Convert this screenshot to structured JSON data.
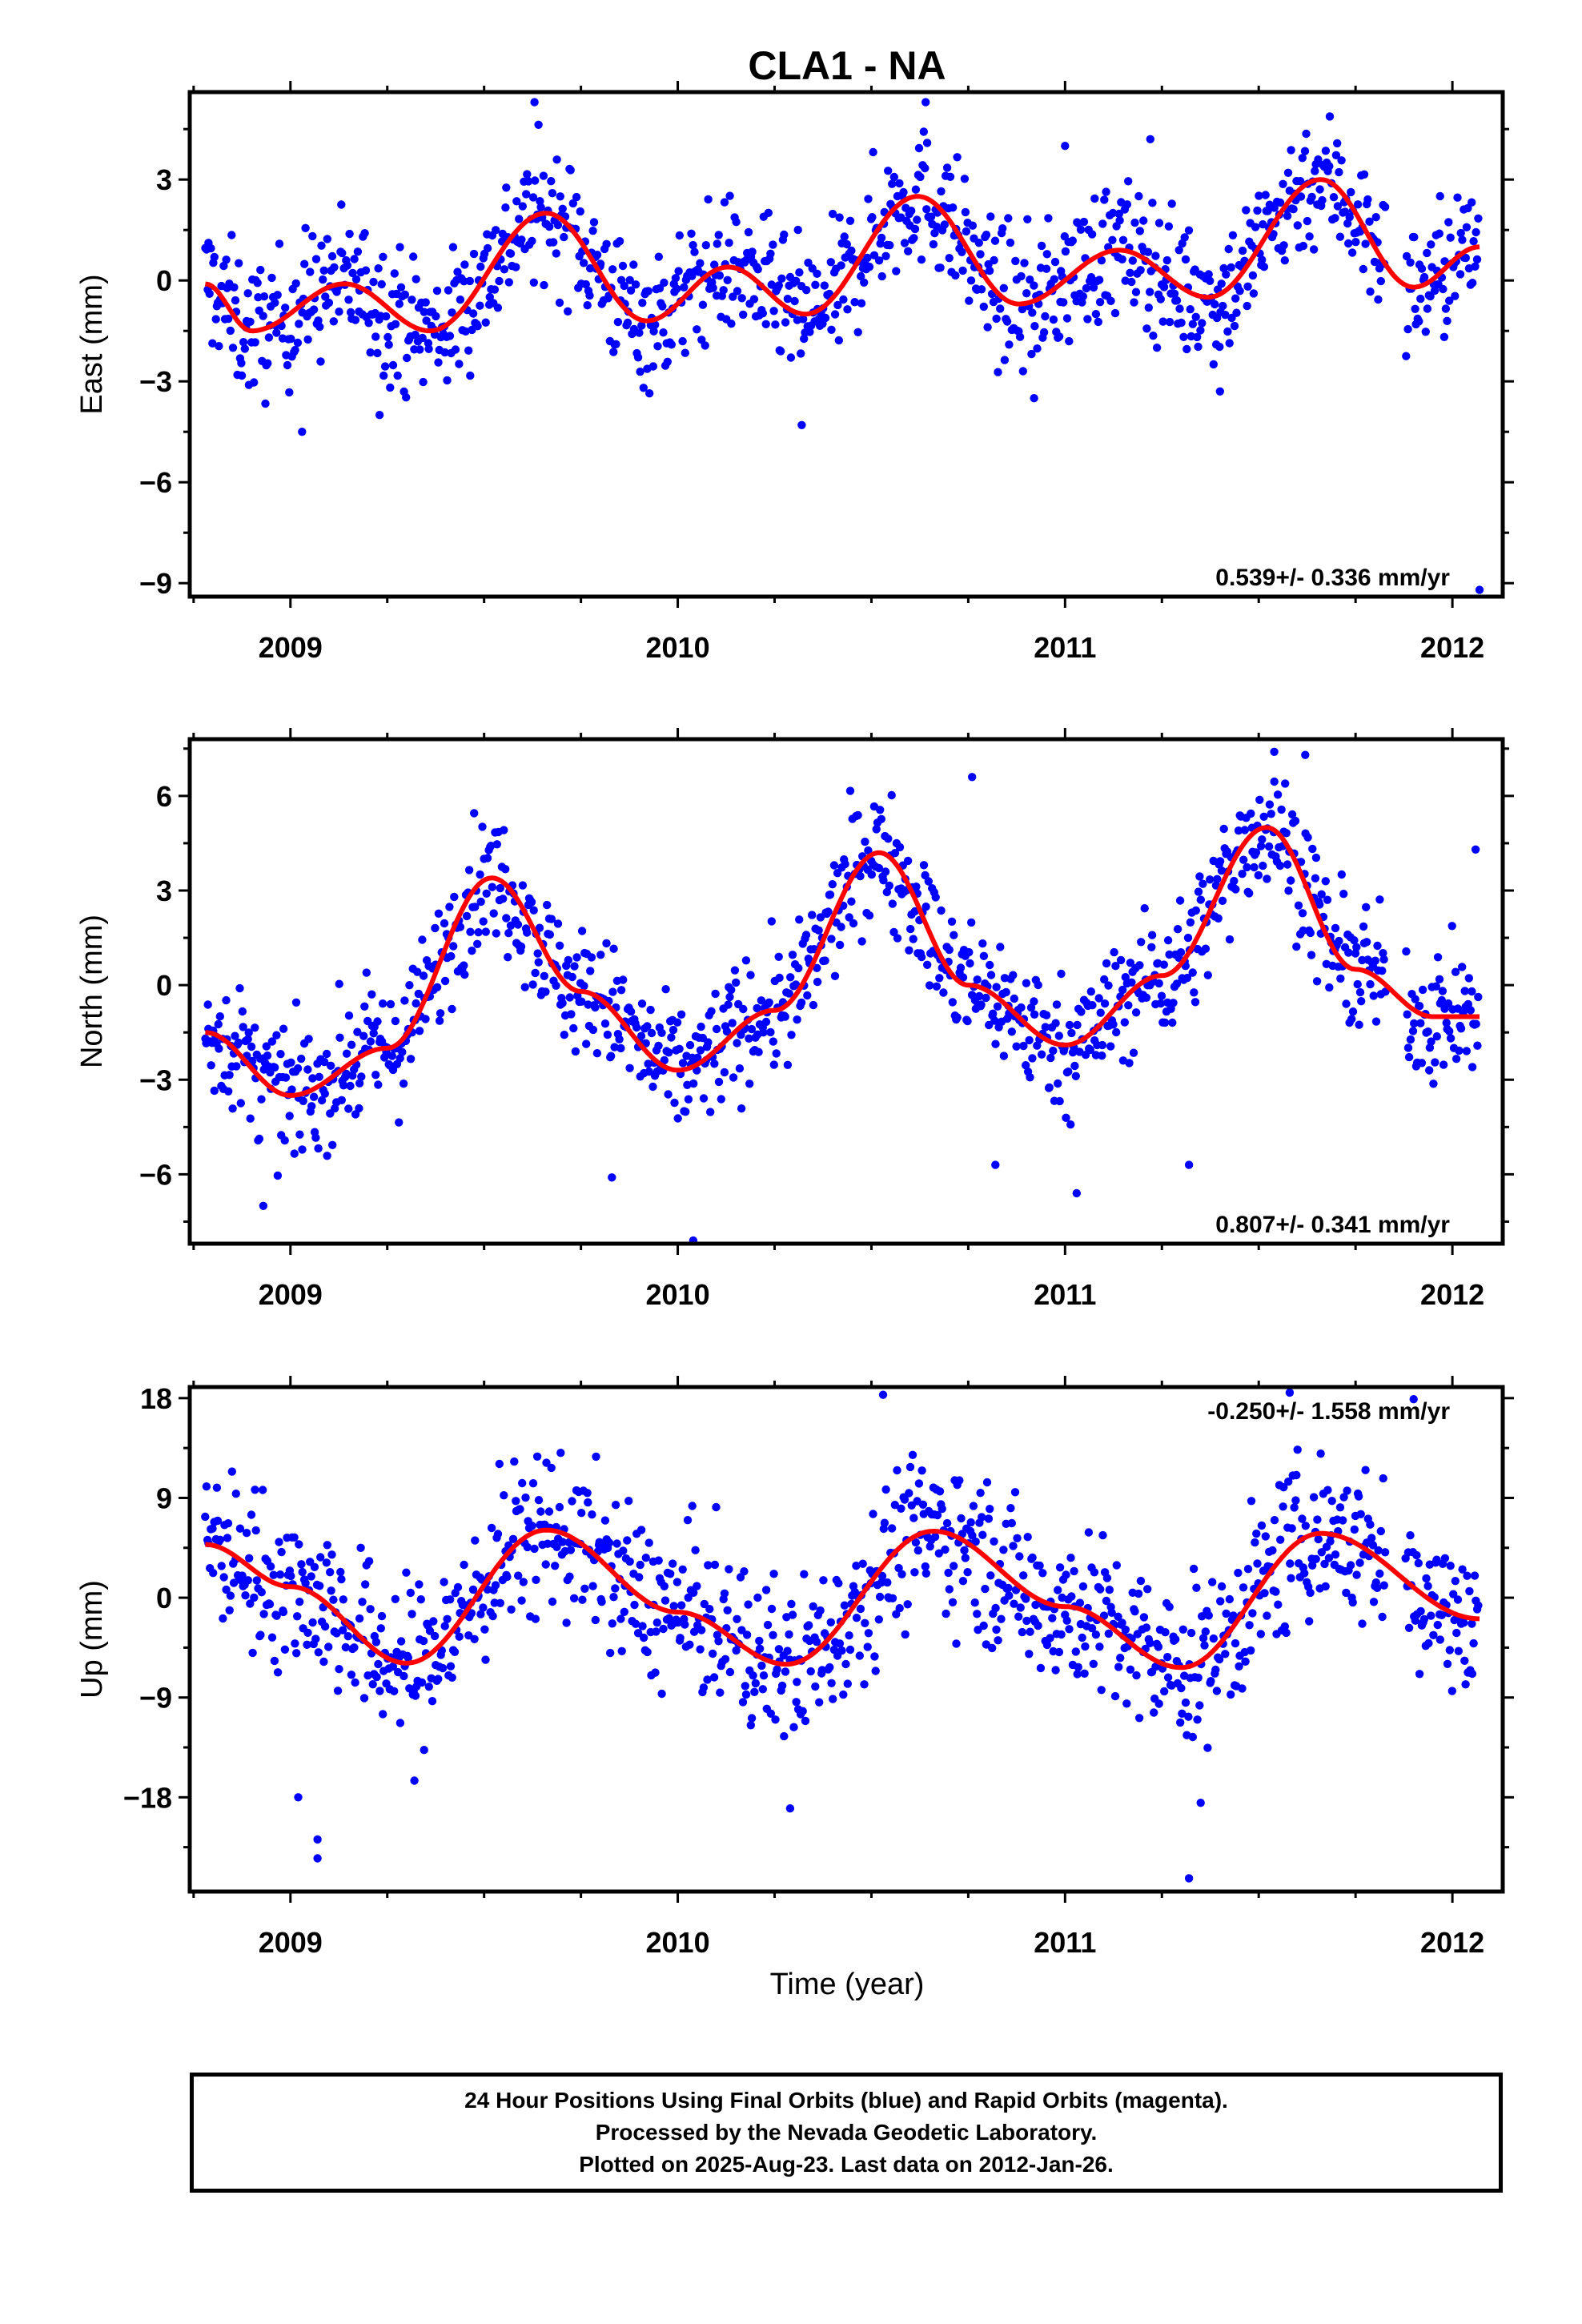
{
  "title": "CLA1 - NA",
  "xlabel": "Time (year)",
  "caption": [
    "24 Hour Positions Using Final Orbits (blue) and Rapid Orbits (magenta).",
    "Processed by the Nevada Geodetic Laboratory.",
    "Plotted on 2025-Aug-23. Last data on 2012-Jan-26."
  ],
  "colors": {
    "data": "#0000ff",
    "fit": "#ff0000",
    "axes": "#000000"
  },
  "chart_data": [
    {
      "type": "scatter",
      "ylabel": "East (mm)",
      "rate_text": "0.539+/- 0.336 mm/yr",
      "xlim": [
        2008.74,
        2012.13
      ],
      "ylim": [
        -9.4,
        5.6
      ],
      "xticks": [
        2009,
        2010,
        2011,
        2012
      ],
      "yticks": [
        3,
        0,
        -3,
        -6,
        -9
      ],
      "ytick_labels": [
        "3",
        "0",
        "−3",
        "−6",
        "−9"
      ],
      "fit": {
        "name": "",
        "x": [
          2008.78,
          2008.9,
          2009.14,
          2009.36,
          2009.66,
          2009.92,
          2010.13,
          2010.33,
          2010.62,
          2010.88,
          2011.14,
          2011.37,
          2011.66,
          2011.9,
          2012.07
        ],
        "y": [
          -0.1,
          -1.5,
          -0.1,
          -1.5,
          2.0,
          -1.2,
          0.4,
          -1.0,
          2.5,
          -0.7,
          0.9,
          -0.5,
          3.0,
          -0.2,
          1.0
        ]
      },
      "series_scatter": {
        "segments": [
          [
            2008.78,
            2011.83
          ],
          [
            2011.88,
            2012.07
          ]
        ],
        "spread": 1.0,
        "outliers": [
          [
            2009.63,
            5.3
          ],
          [
            2010.64,
            5.3
          ],
          [
            2011.0,
            4.0
          ],
          [
            2011.22,
            4.2
          ],
          [
            2012.07,
            -9.2
          ],
          [
            2010.32,
            -4.3
          ],
          [
            2009.03,
            -4.5
          ],
          [
            2009.23,
            -4.0
          ],
          [
            2010.92,
            -3.5
          ],
          [
            2011.4,
            -3.3
          ]
        ]
      }
    },
    {
      "type": "scatter",
      "ylabel": "North (mm)",
      "rate_text": "0.807+/- 0.341 mm/yr",
      "xlim": [
        2008.74,
        2012.13
      ],
      "ylim": [
        -8.2,
        7.8
      ],
      "xticks": [
        2009,
        2010,
        2011,
        2012
      ],
      "yticks": [
        6,
        3,
        0,
        -3,
        -6
      ],
      "ytick_labels": [
        "6",
        "3",
        "0",
        "−3",
        "−6"
      ],
      "fit": {
        "name": "",
        "x": [
          2008.78,
          2009.0,
          2009.25,
          2009.52,
          2009.75,
          2010.0,
          2010.25,
          2010.52,
          2010.75,
          2011.0,
          2011.25,
          2011.52,
          2011.75,
          2011.95,
          2012.07
        ],
        "y": [
          -1.5,
          -3.5,
          -2.0,
          3.4,
          -0.2,
          -2.7,
          -0.8,
          4.2,
          0.0,
          -1.9,
          0.3,
          5.0,
          0.5,
          -1.0,
          -1.0
        ]
      },
      "series_scatter": {
        "segments": [
          [
            2008.78,
            2011.83
          ],
          [
            2011.88,
            2012.07
          ]
        ],
        "spread": 1.0,
        "outliers": [
          [
            2010.04,
            -8.1
          ],
          [
            2009.83,
            -6.1
          ],
          [
            2008.93,
            -7.0
          ],
          [
            2011.03,
            -6.6
          ],
          [
            2010.76,
            6.6
          ],
          [
            2011.54,
            7.4
          ],
          [
            2011.62,
            7.3
          ],
          [
            2012.06,
            4.3
          ],
          [
            2010.82,
            -5.7
          ],
          [
            2011.32,
            -5.7
          ]
        ]
      }
    },
    {
      "type": "scatter",
      "ylabel": "Up (mm)",
      "rate_text": "-0.250+/- 1.558 mm/yr",
      "xlim": [
        2008.74,
        2012.13
      ],
      "ylim": [
        -26.5,
        19.0
      ],
      "xticks": [
        2009,
        2010,
        2011,
        2012
      ],
      "yticks": [
        18,
        9,
        0,
        -9,
        -18
      ],
      "ytick_labels": [
        "18",
        "9",
        "0",
        "−9",
        "−18"
      ],
      "fit": {
        "name": "",
        "x": [
          2008.78,
          2009.0,
          2009.3,
          2009.66,
          2010.0,
          2010.28,
          2010.66,
          2011.0,
          2011.3,
          2011.66,
          2012.07
        ],
        "y": [
          4.8,
          1.0,
          -5.9,
          6.1,
          -1.3,
          -6.0,
          6.0,
          -0.8,
          -6.3,
          5.8,
          -1.9
        ]
      },
      "series_scatter": {
        "segments": [
          [
            2008.78,
            2011.83
          ],
          [
            2011.88,
            2012.07
          ]
        ],
        "spread": 3.6,
        "outliers": [
          [
            2009.07,
            -23.5
          ],
          [
            2009.07,
            -21.8
          ],
          [
            2011.32,
            -25.3
          ],
          [
            2011.35,
            -18.5
          ],
          [
            2010.29,
            -19.0
          ],
          [
            2010.53,
            18.3
          ],
          [
            2011.58,
            18.5
          ],
          [
            2011.9,
            17.9
          ],
          [
            2009.02,
            -18.0
          ],
          [
            2009.32,
            -16.5
          ]
        ]
      }
    }
  ]
}
